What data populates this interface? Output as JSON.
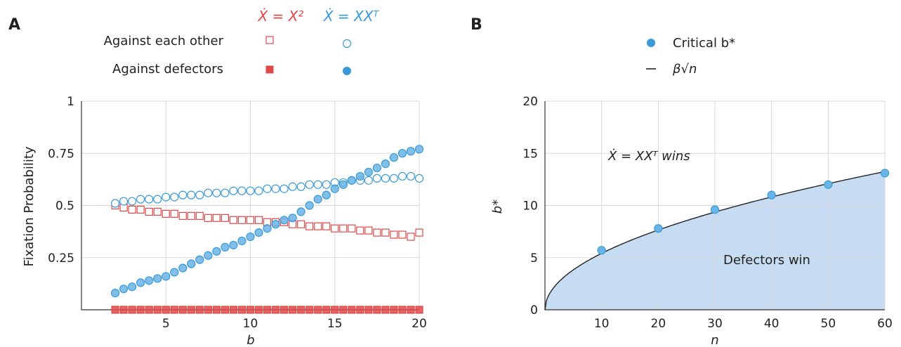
{
  "panel_a": {
    "letter": "A",
    "legend": {
      "col_x2": "Ẋ = X²",
      "col_xxt": "Ẋ = XXᵀ",
      "row_each_other": "Against each other",
      "row_defectors": "Against defectors"
    }
  },
  "panel_b": {
    "letter": "B",
    "legend": {
      "critical": "Critical b*",
      "curve": "β√n"
    },
    "annotations": {
      "wins": "Ẋ = XXᵀ wins",
      "defectors": "Defectors win"
    }
  },
  "colors": {
    "red": "#e04848",
    "blue": "#3a9ad9",
    "blue_fill": "#6ab4e6",
    "area": "#c5dcf3"
  },
  "chart_data": [
    {
      "type": "scatter",
      "xlabel": "b",
      "ylabel": "Fixation Probability",
      "xlim": [
        0,
        20
      ],
      "ylim": [
        0,
        1
      ],
      "x_ticks": [
        5,
        10,
        15,
        20
      ],
      "y_ticks": [
        0.25,
        0.5,
        0.75,
        1
      ],
      "y_tick_labels": [
        "0.25",
        "0.5",
        "0.75",
        "1"
      ],
      "grid": true,
      "series": [
        {
          "name": "X2 against each other",
          "marker": "open-square",
          "x": [
            2.0,
            2.5,
            3.0,
            3.5,
            4.0,
            4.5,
            5.0,
            5.5,
            6.0,
            6.5,
            7.0,
            7.5,
            8.0,
            8.5,
            9.0,
            9.5,
            10.0,
            10.5,
            11.0,
            11.5,
            12.0,
            12.5,
            13.0,
            13.5,
            14.0,
            14.5,
            15.0,
            15.5,
            16.0,
            16.5,
            17.0,
            17.5,
            18.0,
            18.5,
            19.0,
            19.5,
            20.0
          ],
          "values": [
            0.5,
            0.49,
            0.48,
            0.48,
            0.47,
            0.47,
            0.46,
            0.46,
            0.45,
            0.45,
            0.45,
            0.44,
            0.44,
            0.44,
            0.43,
            0.43,
            0.43,
            0.43,
            0.42,
            0.42,
            0.42,
            0.41,
            0.41,
            0.4,
            0.4,
            0.4,
            0.39,
            0.39,
            0.39,
            0.38,
            0.38,
            0.37,
            0.37,
            0.36,
            0.36,
            0.35,
            0.37
          ]
        },
        {
          "name": "XXT against each other",
          "marker": "open-circle",
          "x": [
            2.0,
            2.5,
            3.0,
            3.5,
            4.0,
            4.5,
            5.0,
            5.5,
            6.0,
            6.5,
            7.0,
            7.5,
            8.0,
            8.5,
            9.0,
            9.5,
            10.0,
            10.5,
            11.0,
            11.5,
            12.0,
            12.5,
            13.0,
            13.5,
            14.0,
            14.5,
            15.0,
            15.5,
            16.0,
            16.5,
            17.0,
            17.5,
            18.0,
            18.5,
            19.0,
            19.5,
            20.0
          ],
          "values": [
            0.51,
            0.52,
            0.52,
            0.53,
            0.53,
            0.53,
            0.54,
            0.54,
            0.55,
            0.55,
            0.55,
            0.56,
            0.56,
            0.56,
            0.57,
            0.57,
            0.57,
            0.57,
            0.58,
            0.58,
            0.58,
            0.59,
            0.59,
            0.6,
            0.6,
            0.6,
            0.61,
            0.61,
            0.62,
            0.62,
            0.62,
            0.63,
            0.63,
            0.63,
            0.64,
            0.64,
            0.63
          ]
        },
        {
          "name": "X2 against defectors",
          "marker": "filled-square",
          "x": [
            2.0,
            2.5,
            3.0,
            3.5,
            4.0,
            4.5,
            5.0,
            5.5,
            6.0,
            6.5,
            7.0,
            7.5,
            8.0,
            8.5,
            9.0,
            9.5,
            10.0,
            10.5,
            11.0,
            11.5,
            12.0,
            12.5,
            13.0,
            13.5,
            14.0,
            14.5,
            15.0,
            15.5,
            16.0,
            16.5,
            17.0,
            17.5,
            18.0,
            18.5,
            19.0,
            19.5,
            20.0
          ],
          "values": [
            0,
            0,
            0,
            0,
            0,
            0,
            0,
            0,
            0,
            0,
            0,
            0,
            0,
            0,
            0,
            0,
            0,
            0,
            0,
            0,
            0,
            0,
            0,
            0,
            0,
            0,
            0,
            0,
            0,
            0,
            0,
            0,
            0,
            0,
            0,
            0,
            0
          ]
        },
        {
          "name": "XXT against defectors",
          "marker": "filled-circle",
          "x": [
            2.0,
            2.5,
            3.0,
            3.5,
            4.0,
            4.5,
            5.0,
            5.5,
            6.0,
            6.5,
            7.0,
            7.5,
            8.0,
            8.5,
            9.0,
            9.5,
            10.0,
            10.5,
            11.0,
            11.5,
            12.0,
            12.5,
            13.0,
            13.5,
            14.0,
            14.5,
            15.0,
            15.5,
            16.0,
            16.5,
            17.0,
            17.5,
            18.0,
            18.5,
            19.0,
            19.5,
            20.0
          ],
          "values": [
            0.08,
            0.1,
            0.11,
            0.13,
            0.14,
            0.15,
            0.16,
            0.18,
            0.2,
            0.22,
            0.24,
            0.26,
            0.28,
            0.3,
            0.31,
            0.33,
            0.35,
            0.37,
            0.39,
            0.41,
            0.43,
            0.44,
            0.47,
            0.5,
            0.53,
            0.55,
            0.58,
            0.6,
            0.62,
            0.64,
            0.66,
            0.68,
            0.7,
            0.73,
            0.75,
            0.76,
            0.77
          ]
        }
      ]
    },
    {
      "type": "scatter",
      "xlabel": "n",
      "ylabel": "b*",
      "xlim": [
        0,
        60
      ],
      "ylim": [
        0,
        20
      ],
      "x_ticks": [
        10,
        20,
        30,
        40,
        50,
        60
      ],
      "y_ticks": [
        0,
        5,
        10,
        15,
        20
      ],
      "grid": true,
      "curve": {
        "name": "β√n",
        "beta": 1.71
      },
      "series": [
        {
          "name": "Critical b*",
          "marker": "filled-circle",
          "x": [
            10,
            20,
            30,
            40,
            50,
            60
          ],
          "values": [
            5.7,
            7.8,
            9.6,
            11.0,
            12.0,
            13.1
          ]
        }
      ]
    }
  ]
}
